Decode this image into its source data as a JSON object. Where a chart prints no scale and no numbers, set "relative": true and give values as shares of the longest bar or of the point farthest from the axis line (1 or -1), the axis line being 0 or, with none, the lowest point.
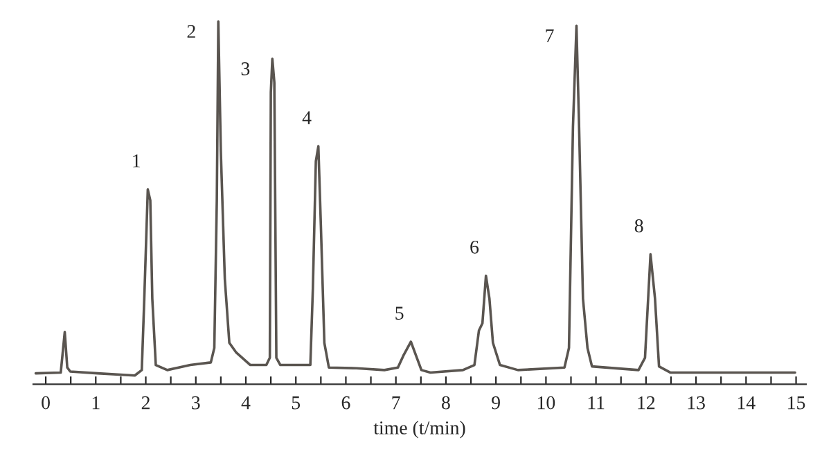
{
  "chart_data": {
    "type": "line",
    "relative": true,
    "xlabel": "time (t/min)",
    "xlim": [
      -0.25,
      15.2
    ],
    "xticks": [
      0,
      {
        "value": 0.5,
        "label": null
      },
      1,
      {
        "value": 1.5,
        "label": null
      },
      2,
      {
        "value": 2.5,
        "label": null
      },
      3,
      {
        "value": 3.5,
        "label": null
      },
      4,
      {
        "value": 4.5,
        "label": null
      },
      5,
      {
        "value": 5.5,
        "label": null
      },
      6,
      {
        "value": 6.5,
        "label": null
      },
      7,
      {
        "value": 7.5,
        "label": null
      },
      8,
      {
        "value": 8.5,
        "label": null
      },
      9,
      {
        "value": 9.5,
        "label": null
      },
      10,
      {
        "value": 10.5,
        "label": null
      },
      11,
      {
        "value": 11.5,
        "label": null
      },
      12,
      {
        "value": 12.5,
        "label": null
      },
      13,
      {
        "value": 13.5,
        "label": null
      },
      14,
      {
        "value": 14.5,
        "label": null
      },
      15
    ],
    "grid": false,
    "marker": "none",
    "line_style": "solid",
    "series": [
      {
        "color": "#5a5550",
        "x": [
          -0.2,
          0.3,
          0.38,
          0.43,
          0.49,
          1.04,
          1.78,
          1.92,
          1.97,
          2.04,
          2.09,
          2.13,
          2.2,
          2.43,
          2.89,
          3.3,
          3.37,
          3.42,
          3.45,
          3.5,
          3.58,
          3.67,
          3.81,
          4.09,
          4.41,
          4.48,
          4.5,
          4.53,
          4.57,
          4.61,
          4.69,
          5.29,
          5.34,
          5.4,
          5.45,
          5.5,
          5.57,
          5.66,
          6.21,
          6.77,
          7.04,
          7.15,
          7.3,
          7.51,
          7.69,
          8.34,
          8.57,
          8.66,
          8.73,
          8.8,
          8.87,
          8.94,
          9.08,
          9.44,
          10.37,
          10.46,
          10.54,
          10.61,
          10.66,
          10.74,
          10.83,
          10.92,
          11.85,
          11.98,
          12.09,
          12.18,
          12.26,
          12.49,
          14.98
        ],
        "values": [
          0.03,
          0.032,
          0.144,
          0.046,
          0.035,
          0.03,
          0.024,
          0.039,
          0.236,
          0.537,
          0.507,
          0.236,
          0.053,
          0.039,
          0.053,
          0.06,
          0.1,
          0.507,
          1.0,
          0.643,
          0.29,
          0.114,
          0.087,
          0.053,
          0.053,
          0.073,
          0.805,
          0.897,
          0.832,
          0.073,
          0.053,
          0.053,
          0.263,
          0.615,
          0.656,
          0.439,
          0.114,
          0.046,
          0.044,
          0.039,
          0.046,
          0.079,
          0.117,
          0.039,
          0.032,
          0.039,
          0.053,
          0.148,
          0.168,
          0.299,
          0.236,
          0.114,
          0.053,
          0.039,
          0.046,
          0.1,
          0.71,
          0.988,
          0.724,
          0.236,
          0.1,
          0.049,
          0.039,
          0.073,
          0.358,
          0.236,
          0.049,
          0.032,
          0.032
        ]
      }
    ],
    "annotations": [
      {
        "text": "1",
        "x": 2.04,
        "y": 0.537
      },
      {
        "text": "2",
        "x": 3.45,
        "y": 1.0
      },
      {
        "text": "3",
        "x": 4.53,
        "y": 0.897
      },
      {
        "text": "4",
        "x": 5.45,
        "y": 0.656
      },
      {
        "text": "5",
        "x": 7.3,
        "y": 0.117
      },
      {
        "text": "6",
        "x": 8.8,
        "y": 0.299
      },
      {
        "text": "7",
        "x": 10.61,
        "y": 0.988
      },
      {
        "text": "8",
        "x": 12.09,
        "y": 0.358
      }
    ]
  }
}
